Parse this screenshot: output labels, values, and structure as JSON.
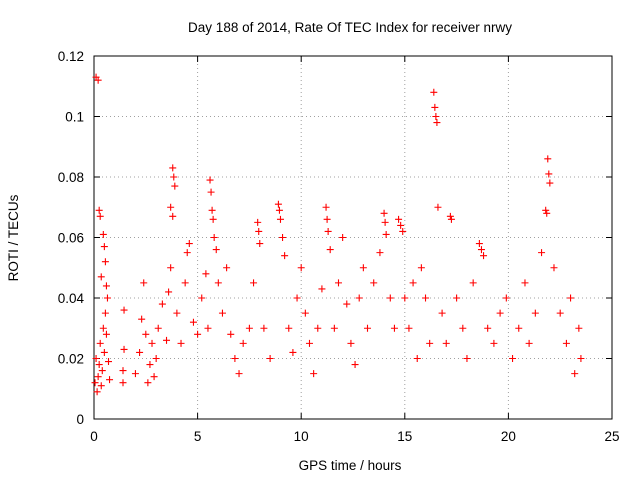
{
  "chart_data": {
    "type": "scatter",
    "title": "Day 188 of 2014, Rate Of TEC Index for receiver nrwy",
    "xlabel": "GPS time / hours",
    "ylabel": "ROTI / TECUs",
    "xlim": [
      0,
      25
    ],
    "ylim": [
      0,
      0.12
    ],
    "xticks": [
      0,
      5,
      10,
      15,
      20,
      25
    ],
    "xtick_labels": [
      "0",
      "5",
      "10",
      "15",
      "20",
      "25"
    ],
    "yticks": [
      0,
      0.02,
      0.04,
      0.06,
      0.08,
      0.1,
      0.12
    ],
    "ytick_labels": [
      "0",
      "0.02",
      "0.04",
      "0.06",
      "0.08",
      "0.1",
      "0.12"
    ],
    "grid": true,
    "marker": "+",
    "color": "#ff0000",
    "series": [
      {
        "name": "ROTI",
        "points": [
          [
            0.05,
            0.012
          ],
          [
            0.1,
            0.02
          ],
          [
            0.15,
            0.009
          ],
          [
            0.2,
            0.014
          ],
          [
            0.25,
            0.018
          ],
          [
            0.3,
            0.025
          ],
          [
            0.35,
            0.011
          ],
          [
            0.4,
            0.016
          ],
          [
            0.45,
            0.03
          ],
          [
            0.5,
            0.022
          ],
          [
            0.55,
            0.035
          ],
          [
            0.6,
            0.028
          ],
          [
            0.65,
            0.04
          ],
          [
            0.7,
            0.019
          ],
          [
            0.75,
            0.013
          ],
          [
            0.1,
            0.113
          ],
          [
            0.2,
            0.112
          ],
          [
            0.25,
            0.069
          ],
          [
            0.3,
            0.067
          ],
          [
            0.45,
            0.061
          ],
          [
            0.5,
            0.057
          ],
          [
            0.55,
            0.052
          ],
          [
            0.35,
            0.047
          ],
          [
            0.6,
            0.044
          ],
          [
            1.4,
            0.016
          ],
          [
            1.45,
            0.023
          ],
          [
            1.4,
            0.012
          ],
          [
            1.45,
            0.036
          ],
          [
            2.0,
            0.015
          ],
          [
            2.2,
            0.022
          ],
          [
            2.3,
            0.033
          ],
          [
            2.4,
            0.045
          ],
          [
            2.5,
            0.028
          ],
          [
            2.6,
            0.012
          ],
          [
            2.7,
            0.018
          ],
          [
            2.8,
            0.025
          ],
          [
            2.9,
            0.014
          ],
          [
            3.0,
            0.02
          ],
          [
            3.1,
            0.03
          ],
          [
            3.3,
            0.038
          ],
          [
            3.5,
            0.026
          ],
          [
            3.6,
            0.042
          ],
          [
            3.7,
            0.05
          ],
          [
            3.8,
            0.083
          ],
          [
            3.85,
            0.08
          ],
          [
            3.9,
            0.077
          ],
          [
            3.7,
            0.07
          ],
          [
            3.8,
            0.067
          ],
          [
            4.0,
            0.035
          ],
          [
            4.2,
            0.025
          ],
          [
            4.4,
            0.045
          ],
          [
            4.5,
            0.055
          ],
          [
            4.6,
            0.058
          ],
          [
            4.8,
            0.032
          ],
          [
            5.0,
            0.028
          ],
          [
            5.2,
            0.04
          ],
          [
            5.4,
            0.048
          ],
          [
            5.5,
            0.03
          ],
          [
            5.6,
            0.079
          ],
          [
            5.65,
            0.075
          ],
          [
            5.7,
            0.069
          ],
          [
            5.75,
            0.066
          ],
          [
            5.8,
            0.06
          ],
          [
            5.9,
            0.056
          ],
          [
            6.0,
            0.045
          ],
          [
            6.2,
            0.035
          ],
          [
            6.4,
            0.05
          ],
          [
            6.6,
            0.028
          ],
          [
            6.8,
            0.02
          ],
          [
            7.0,
            0.015
          ],
          [
            7.2,
            0.025
          ],
          [
            7.5,
            0.03
          ],
          [
            7.7,
            0.045
          ],
          [
            7.9,
            0.065
          ],
          [
            7.95,
            0.062
          ],
          [
            8.0,
            0.058
          ],
          [
            8.2,
            0.03
          ],
          [
            8.5,
            0.02
          ],
          [
            8.9,
            0.071
          ],
          [
            8.95,
            0.069
          ],
          [
            9.0,
            0.066
          ],
          [
            9.1,
            0.06
          ],
          [
            9.2,
            0.054
          ],
          [
            9.4,
            0.03
          ],
          [
            9.6,
            0.022
          ],
          [
            9.8,
            0.04
          ],
          [
            10.0,
            0.05
          ],
          [
            10.2,
            0.035
          ],
          [
            10.4,
            0.025
          ],
          [
            10.6,
            0.015
          ],
          [
            10.8,
            0.03
          ],
          [
            11.0,
            0.043
          ],
          [
            11.2,
            0.07
          ],
          [
            11.25,
            0.066
          ],
          [
            11.3,
            0.062
          ],
          [
            11.4,
            0.056
          ],
          [
            11.6,
            0.03
          ],
          [
            11.8,
            0.045
          ],
          [
            12.0,
            0.06
          ],
          [
            12.2,
            0.038
          ],
          [
            12.4,
            0.025
          ],
          [
            12.6,
            0.018
          ],
          [
            12.8,
            0.04
          ],
          [
            13.0,
            0.05
          ],
          [
            13.2,
            0.03
          ],
          [
            13.5,
            0.045
          ],
          [
            13.8,
            0.055
          ],
          [
            14.0,
            0.068
          ],
          [
            14.05,
            0.065
          ],
          [
            14.1,
            0.061
          ],
          [
            14.3,
            0.04
          ],
          [
            14.5,
            0.03
          ],
          [
            14.7,
            0.066
          ],
          [
            14.8,
            0.064
          ],
          [
            14.9,
            0.062
          ],
          [
            15.0,
            0.04
          ],
          [
            15.2,
            0.03
          ],
          [
            15.4,
            0.045
          ],
          [
            15.6,
            0.02
          ],
          [
            15.8,
            0.05
          ],
          [
            16.0,
            0.04
          ],
          [
            16.2,
            0.025
          ],
          [
            16.4,
            0.108
          ],
          [
            16.45,
            0.103
          ],
          [
            16.5,
            0.1
          ],
          [
            16.55,
            0.098
          ],
          [
            16.6,
            0.07
          ],
          [
            16.8,
            0.035
          ],
          [
            17.0,
            0.025
          ],
          [
            17.2,
            0.067
          ],
          [
            17.25,
            0.066
          ],
          [
            17.5,
            0.04
          ],
          [
            17.8,
            0.03
          ],
          [
            18.0,
            0.02
          ],
          [
            18.3,
            0.045
          ],
          [
            18.6,
            0.058
          ],
          [
            18.7,
            0.056
          ],
          [
            18.8,
            0.054
          ],
          [
            19.0,
            0.03
          ],
          [
            19.3,
            0.025
          ],
          [
            19.6,
            0.035
          ],
          [
            19.9,
            0.04
          ],
          [
            20.2,
            0.02
          ],
          [
            20.5,
            0.03
          ],
          [
            20.8,
            0.045
          ],
          [
            21.0,
            0.025
          ],
          [
            21.3,
            0.035
          ],
          [
            21.6,
            0.055
          ],
          [
            21.8,
            0.069
          ],
          [
            21.85,
            0.068
          ],
          [
            21.9,
            0.086
          ],
          [
            21.95,
            0.081
          ],
          [
            22.0,
            0.078
          ],
          [
            22.2,
            0.05
          ],
          [
            22.5,
            0.035
          ],
          [
            22.8,
            0.025
          ],
          [
            23.0,
            0.04
          ],
          [
            23.2,
            0.015
          ],
          [
            23.4,
            0.03
          ],
          [
            23.5,
            0.02
          ]
        ]
      }
    ]
  }
}
